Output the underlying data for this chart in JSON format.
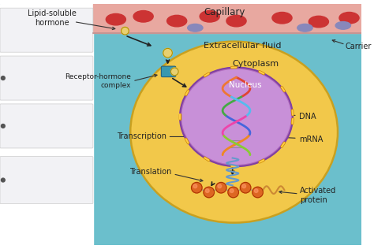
{
  "fig_width": 4.74,
  "fig_height": 3.16,
  "dpi": 100,
  "bg_color": "#6bbfcc",
  "capillary_color": "#e8a8a0",
  "capillary_border_top": "#d08888",
  "capillary_border_bot": "#c09090",
  "cell_color": "#f2c84a",
  "cell_border": "#c8a020",
  "nucleus_color": "#b06abe",
  "nucleus_border": "#8040a0",
  "nucleus_inner": "#c890d8",
  "rbc_color": "#cc3333",
  "carrier_color": "#8888bb",
  "hormone_color": "#e8d070",
  "receptor_color": "#3090b0",
  "protein_color": "#dd6622",
  "arrow_color": "#222222",
  "label_color": "#222222",
  "flashcard_color": "#f2f2f5",
  "flashcard_border": "#cccccc",
  "labels": {
    "capillary": "Capillary",
    "carrier": "Carrier",
    "extracellular": "Extracellular fluid",
    "cytoplasm": "Cytoplasm",
    "nucleus": "Nucleus",
    "lipid_hormone": "Lipid-soluble\nhormone",
    "receptor_complex": "Receptor-hormone\ncomplex",
    "transcription": "Transcription",
    "translation": "Translation",
    "dna": "DNA",
    "mrna": "mRNA",
    "activated_protein": "Activated\nprotein"
  }
}
